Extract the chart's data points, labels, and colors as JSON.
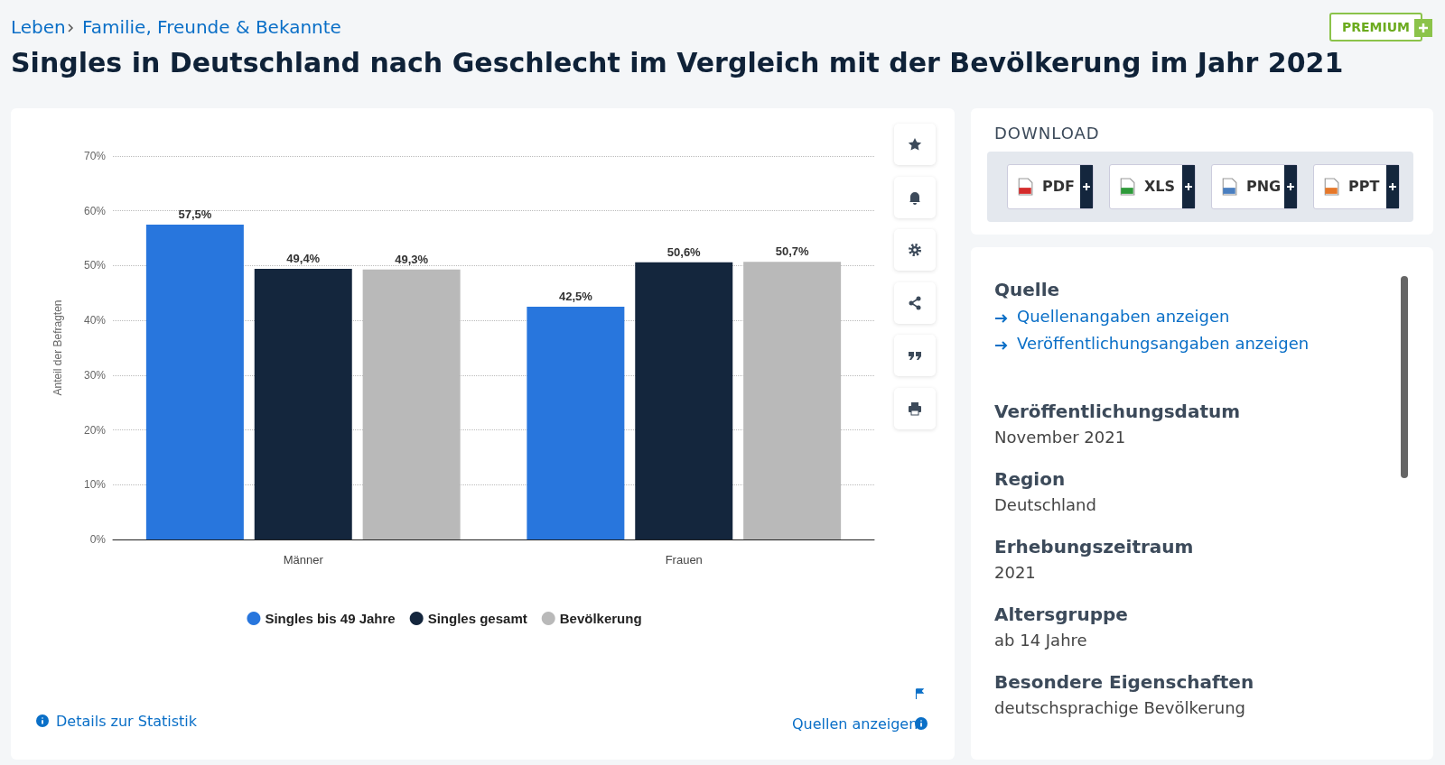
{
  "chart_data": {
    "type": "bar",
    "title": "Singles in Deutschland nach Geschlecht im Vergleich mit der Bevölkerung im Jahr 2021",
    "ylabel": "Anteil der Befragten",
    "categories": [
      "Männer",
      "Frauen"
    ],
    "series": [
      {
        "name": "Singles bis 49 Jahre",
        "color": "#2876dd",
        "values": [
          57.5,
          42.5
        ],
        "value_labels": [
          "57,5%",
          "42,5%"
        ]
      },
      {
        "name": "Singles gesamt",
        "color": "#14263d",
        "values": [
          49.4,
          50.6
        ],
        "value_labels": [
          "49,4%",
          "50,6%"
        ]
      },
      {
        "name": "Bevölkerung",
        "color": "#b9b9b9",
        "values": [
          49.3,
          50.7
        ],
        "value_labels": [
          "49,3%",
          "50,7%"
        ]
      }
    ],
    "ylim": [
      0,
      70
    ],
    "yticks": [
      {
        "value": 0,
        "label": "0%"
      },
      {
        "value": 10,
        "label": "10%"
      },
      {
        "value": 20,
        "label": "20%"
      },
      {
        "value": 30,
        "label": "30%"
      },
      {
        "value": 40,
        "label": "40%"
      },
      {
        "value": 50,
        "label": "50%"
      },
      {
        "value": 60,
        "label": "60%"
      },
      {
        "value": 70,
        "label": "70%"
      }
    ],
    "grid": "y",
    "legend": "bottom",
    "annotations": [
      "Leben",
      "Familie, Freunde & Bekannte",
      "PREMIUM",
      "DOWNLOAD",
      "PDF",
      "XLS",
      "PNG",
      "PPT",
      "Quelle",
      "Quellenangaben anzeigen",
      "Veröffentlichungsangaben anzeigen",
      "Veröffentlichungsdatum",
      "November 2021",
      "Region",
      "Deutschland",
      "Erhebungszeitraum",
      "2021",
      "Altersgruppe",
      "ab 14 Jahre",
      "Besondere Eigenschaften",
      "deutschsprachige Bevölkerung",
      "Details zur Statistik",
      "Quellen anzeigen"
    ]
  }
}
